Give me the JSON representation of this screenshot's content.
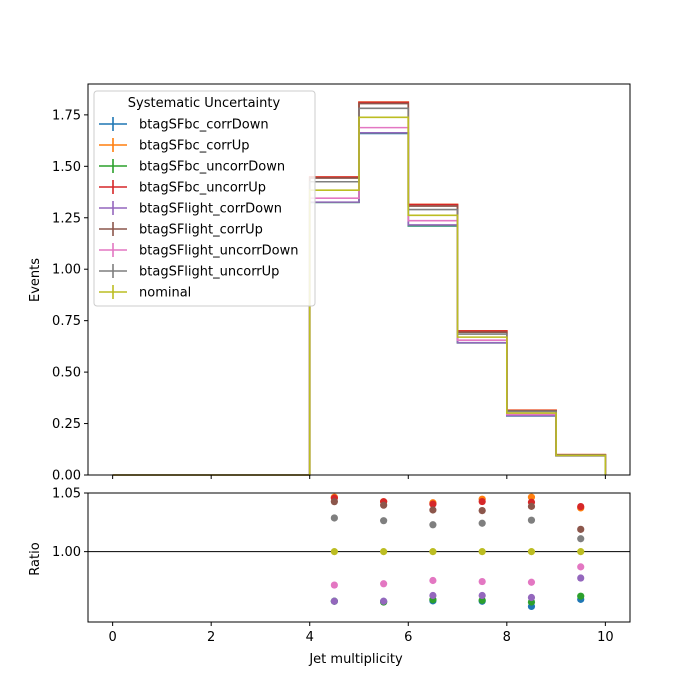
{
  "chart_data": [
    {
      "type": "line",
      "subtype": "step-histogram",
      "title": "",
      "xlabel": "",
      "ylabel": "Events",
      "xlim": [
        -0.5,
        10.5
      ],
      "ylim": [
        0,
        1.9
      ],
      "bin_edges": [
        0,
        1,
        2,
        3,
        4,
        5,
        6,
        7,
        8,
        9,
        10
      ],
      "xticks": [
        "0",
        "2",
        "4",
        "6",
        "8",
        "10"
      ],
      "yticks": [
        "0.00",
        "0.25",
        "0.50",
        "0.75",
        "1.00",
        "1.25",
        "1.50",
        "1.75"
      ],
      "legend": {
        "title": "Systematic Uncertainty",
        "placement": "upper-left"
      },
      "series": [
        {
          "name": "btagSFbc_corrDown",
          "color": "#1f77b4",
          "values": [
            0,
            0,
            0,
            0,
            1.325,
            1.66,
            1.21,
            0.642,
            0.287,
            0.093
          ]
        },
        {
          "name": "btagSFbc_corrUp",
          "color": "#ff7f0e",
          "values": [
            0,
            0,
            0,
            0,
            1.448,
            1.812,
            1.315,
            0.7,
            0.315,
            0.099
          ]
        },
        {
          "name": "btagSFbc_uncorrDown",
          "color": "#2ca02c",
          "values": [
            0,
            0,
            0,
            0,
            1.325,
            1.662,
            1.212,
            0.642,
            0.289,
            0.093
          ]
        },
        {
          "name": "btagSFbc_uncorrUp",
          "color": "#d62728",
          "values": [
            0,
            0,
            0,
            0,
            1.448,
            1.811,
            1.314,
            0.7,
            0.314,
            0.099
          ]
        },
        {
          "name": "btagSFlight_corrDown",
          "color": "#9467bd",
          "values": [
            0,
            0,
            0,
            0,
            1.326,
            1.663,
            1.215,
            0.643,
            0.289,
            0.094
          ]
        },
        {
          "name": "btagSFlight_corrUp",
          "color": "#8c564b",
          "values": [
            0,
            0,
            0,
            0,
            1.443,
            1.805,
            1.307,
            0.694,
            0.312,
            0.097
          ]
        },
        {
          "name": "btagSFlight_uncorrDown",
          "color": "#e377c2",
          "values": [
            0,
            0,
            0,
            0,
            1.345,
            1.688,
            1.236,
            0.655,
            0.294,
            0.094
          ]
        },
        {
          "name": "btagSFlight_uncorrUp",
          "color": "#7f7f7f",
          "values": [
            0,
            0,
            0,
            0,
            1.425,
            1.782,
            1.29,
            0.685,
            0.309,
            0.097
          ]
        },
        {
          "name": "nominal",
          "color": "#bcbd22",
          "values": [
            0,
            0,
            0,
            0,
            1.384,
            1.738,
            1.262,
            0.67,
            0.301,
            0.095
          ]
        }
      ]
    },
    {
      "type": "scatter",
      "title": "",
      "xlabel": "Jet multiplicity",
      "ylabel": "Ratio",
      "xlim": [
        -0.5,
        10.5
      ],
      "ylim": [
        0.94,
        1.05
      ],
      "xticks": [
        "0",
        "2",
        "4",
        "6",
        "8",
        "10"
      ],
      "yticks": [
        "1.00",
        "1.05"
      ],
      "reference_line": 1.0,
      "x": [
        4.5,
        5.5,
        6.5,
        7.5,
        8.5,
        9.5
      ],
      "series": [
        {
          "name": "btagSFbc_corrDown",
          "color": "#1f77b4",
          "values": [
            0.9577,
            0.9576,
            0.958,
            0.9577,
            0.9533,
            0.9593
          ]
        },
        {
          "name": "btagSFbc_corrUp",
          "color": "#ff7f0e",
          "values": [
            1.0464,
            1.0426,
            1.0417,
            1.0447,
            1.0464,
            1.0373
          ]
        },
        {
          "name": "btagSFbc_uncorrDown",
          "color": "#2ca02c",
          "values": [
            0.9577,
            0.957,
            0.959,
            0.9585,
            0.957,
            0.962
          ]
        },
        {
          "name": "btagSFbc_uncorrUp",
          "color": "#d62728",
          "values": [
            1.0456,
            1.0426,
            1.0405,
            1.0427,
            1.0421,
            1.0384
          ]
        },
        {
          "name": "btagSFlight_corrDown",
          "color": "#9467bd",
          "values": [
            0.9577,
            0.9577,
            0.9626,
            0.9626,
            0.9609,
            0.9775
          ]
        },
        {
          "name": "btagSFlight_corrUp",
          "color": "#8c564b",
          "values": [
            1.0426,
            1.0396,
            1.0355,
            1.035,
            1.0386,
            1.019
          ]
        },
        {
          "name": "btagSFlight_uncorrDown",
          "color": "#e377c2",
          "values": [
            0.9715,
            0.9726,
            0.9754,
            0.9745,
            0.9739,
            0.987
          ]
        },
        {
          "name": "btagSFlight_uncorrUp",
          "color": "#7f7f7f",
          "values": [
            1.0287,
            1.0264,
            1.0229,
            1.0242,
            1.0268,
            1.011
          ]
        },
        {
          "name": "nominal",
          "color": "#bcbd22",
          "values": [
            1.0,
            1.0,
            1.0,
            1.0,
            1.0,
            1.0
          ]
        }
      ]
    }
  ]
}
